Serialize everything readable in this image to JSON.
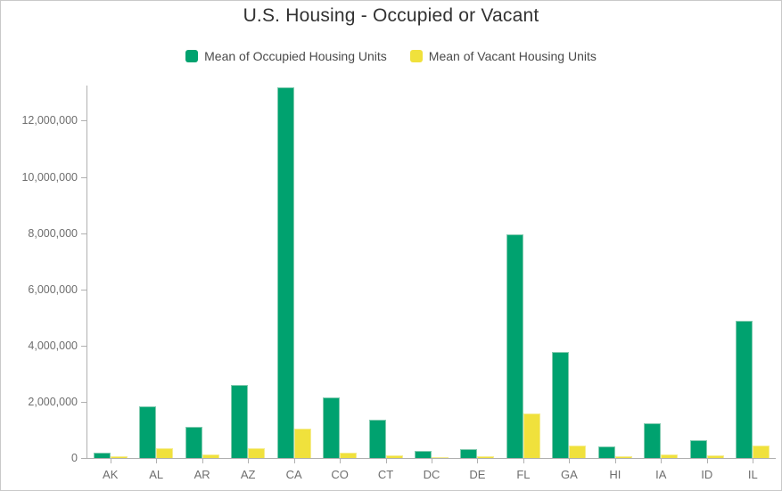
{
  "title": "U.S. Housing - Occupied or Vacant",
  "legend": {
    "items": [
      {
        "label": "Mean of Occupied Housing Units"
      },
      {
        "label": "Mean of Vacant Housing Units"
      }
    ]
  },
  "chart_data": {
    "type": "bar",
    "title": "U.S. Housing - Occupied or Vacant",
    "categories": [
      "AK",
      "AL",
      "AR",
      "AZ",
      "CA",
      "CO",
      "CT",
      "DC",
      "DE",
      "FL",
      "GA",
      "HI",
      "IA",
      "ID",
      "IL"
    ],
    "series": [
      {
        "name": "Mean of Occupied Housing Units",
        "color": "#00a26f",
        "values": [
          200000,
          1850000,
          1110000,
          2590000,
          13200000,
          2140000,
          1370000,
          240000,
          310000,
          7950000,
          3770000,
          420000,
          1240000,
          640000,
          4880000
        ]
      },
      {
        "name": "Mean of Vacant Housing Units",
        "color": "#f0e13c",
        "values": [
          50000,
          340000,
          140000,
          350000,
          1050000,
          180000,
          80000,
          30000,
          60000,
          1580000,
          450000,
          60000,
          120000,
          85000,
          440000
        ]
      }
    ],
    "xlabel": "",
    "ylabel": "",
    "ylim": [
      0,
      13250000
    ],
    "yticks": [
      0,
      2000000,
      4000000,
      6000000,
      8000000,
      10000000,
      12000000
    ],
    "ytick_labels": [
      "0",
      "2,000,000",
      "4,000,000",
      "6,000,000",
      "8,000,000",
      "10,000,000",
      "12,000,000"
    ],
    "grid": false,
    "legend_position": "top"
  }
}
